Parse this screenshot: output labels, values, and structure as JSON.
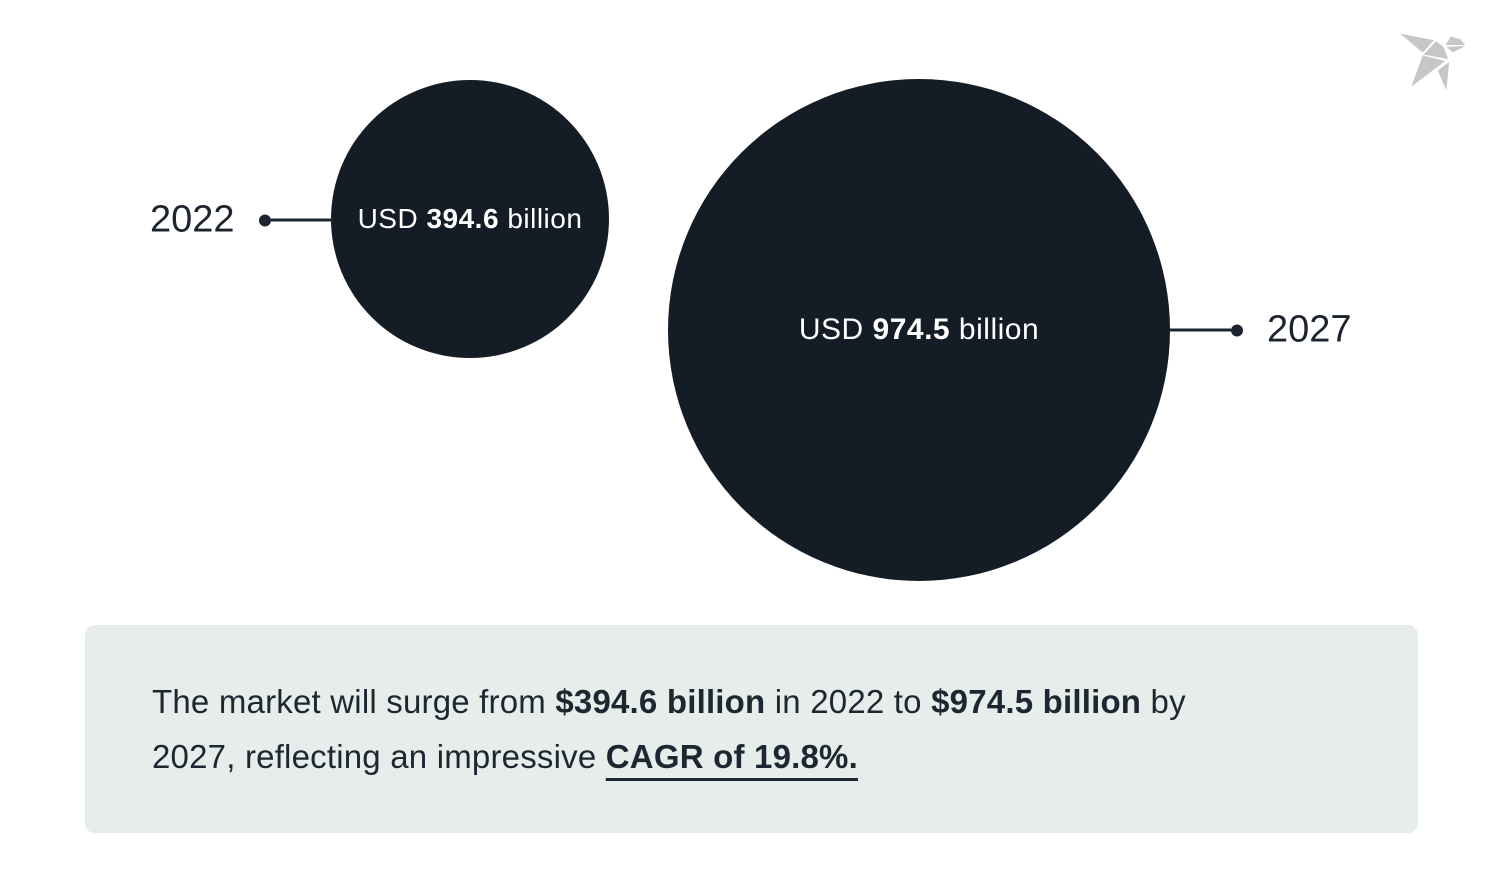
{
  "chart_data": {
    "type": "bubble",
    "categories": [
      "2022",
      "2027"
    ],
    "values": [
      394.6,
      974.5
    ],
    "unit": "USD billion",
    "labels": [
      "USD 394.6 billion",
      "USD 974.5 billion"
    ],
    "cagr_pct": 19.8,
    "annotation": "The market will surge from $394.6 billion in 2022 to $974.5 billion by 2027, reflecting an impressive CAGR of 19.8%.",
    "bubble_color": "#141c26",
    "label_text_color": "#ffffff",
    "callout_color": "#1c242e",
    "legend_position": "none",
    "grid": false
  },
  "bubbles": [
    {
      "year": "2022",
      "prefix": "USD ",
      "value": "394.6",
      "suffix": " billion"
    },
    {
      "year": "2027",
      "prefix": "USD ",
      "value": "974.5",
      "suffix": " billion"
    }
  ],
  "summary": {
    "background": "#e7edea",
    "line1": [
      {
        "t": "The market will surge from ",
        "b": false
      },
      {
        "t": "$394.6 billion",
        "b": true
      },
      {
        "t": " in 2022 to ",
        "b": false
      },
      {
        "t": "$974.5 billion",
        "b": true
      },
      {
        "t": " by",
        "b": false
      }
    ],
    "line2": [
      {
        "t": "2027, reflecting an impressive ",
        "b": false
      },
      {
        "t": "CAGR of 19.8%.",
        "b": true,
        "u": true
      }
    ]
  },
  "logo": {
    "name": "origami-bird-logo",
    "color": "#c6c6c6"
  }
}
